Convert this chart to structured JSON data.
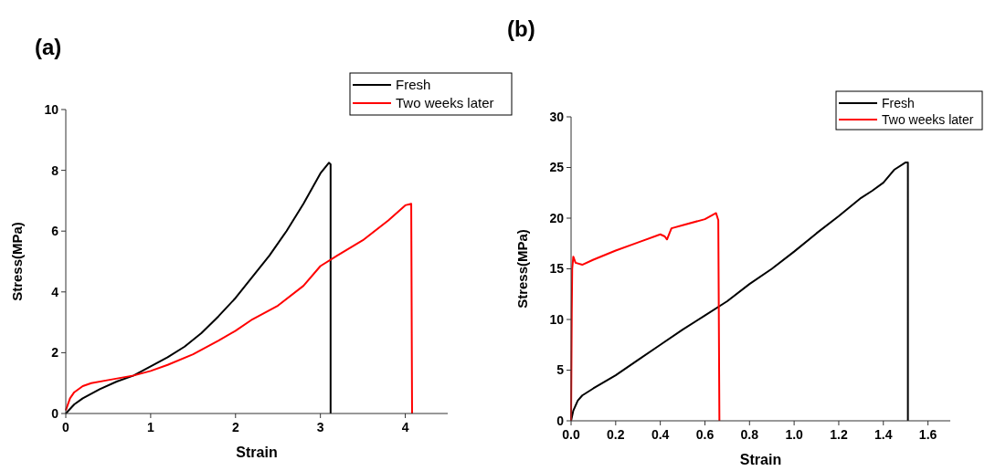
{
  "chart_data": [
    {
      "type": "line",
      "title": "(a)",
      "xlabel": "Strain",
      "ylabel": "Stress(MPa)",
      "xlim": [
        0,
        4.5
      ],
      "xticks": [
        0,
        1,
        2,
        3,
        4
      ],
      "ylim": [
        0,
        10
      ],
      "yticks": [
        0,
        2,
        4,
        6,
        8,
        10
      ],
      "legend": "top right",
      "series": [
        {
          "name": "Fresh",
          "color": "#000000",
          "x": [
            0,
            0.1,
            0.2,
            0.4,
            0.6,
            0.8,
            1.0,
            1.2,
            1.4,
            1.6,
            1.8,
            2.0,
            2.2,
            2.4,
            2.6,
            2.8,
            3.0,
            3.1,
            3.12,
            3.12
          ],
          "values": [
            0,
            0.3,
            0.5,
            0.8,
            1.05,
            1.25,
            1.55,
            1.85,
            2.2,
            2.65,
            3.2,
            3.8,
            4.5,
            5.2,
            6.0,
            6.9,
            7.9,
            8.25,
            8.2,
            0
          ]
        },
        {
          "name": "Two weeks later",
          "color": "#ff0000",
          "x": [
            0,
            0.05,
            0.1,
            0.2,
            0.3,
            0.5,
            0.8,
            1.0,
            1.2,
            1.5,
            1.8,
            2.0,
            2.2,
            2.5,
            2.8,
            3.0,
            3.2,
            3.5,
            3.8,
            4.0,
            4.07,
            4.08
          ],
          "values": [
            0.1,
            0.5,
            0.7,
            0.9,
            1.0,
            1.1,
            1.25,
            1.4,
            1.6,
            1.95,
            2.4,
            2.72,
            3.1,
            3.55,
            4.2,
            4.85,
            5.2,
            5.7,
            6.35,
            6.85,
            6.9,
            0
          ]
        }
      ]
    },
    {
      "type": "line",
      "title": "(b)",
      "xlabel": "Strain",
      "ylabel": "Stress(MPa)",
      "xlim": [
        0,
        1.7
      ],
      "xticks": [
        {
          "value": 0,
          "label": "0.0"
        },
        0.2,
        0.4,
        0.6,
        0.8,
        {
          "value": 1,
          "label": "1.0"
        },
        1.2,
        1.4,
        1.6
      ],
      "ylim": [
        0,
        30
      ],
      "yticks": [
        0,
        5,
        10,
        15,
        20,
        25,
        30
      ],
      "legend": "top right",
      "series": [
        {
          "name": "Fresh",
          "color": "#000000",
          "x": [
            0,
            0.01,
            0.03,
            0.05,
            0.1,
            0.2,
            0.3,
            0.4,
            0.5,
            0.6,
            0.7,
            0.8,
            0.9,
            1.0,
            1.1,
            1.2,
            1.3,
            1.35,
            1.4,
            1.45,
            1.5,
            1.51,
            1.51
          ],
          "values": [
            0,
            1,
            2,
            2.5,
            3.2,
            4.5,
            6,
            7.5,
            9,
            10.4,
            11.8,
            13.5,
            15,
            16.7,
            18.5,
            20.2,
            22,
            22.7,
            23.5,
            24.8,
            25.5,
            25.5,
            0
          ]
        },
        {
          "name": "Two weeks later",
          "color": "#ff0000",
          "x": [
            0,
            0.003,
            0.005,
            0.01,
            0.02,
            0.05,
            0.1,
            0.2,
            0.3,
            0.4,
            0.42,
            0.43,
            0.45,
            0.5,
            0.6,
            0.65,
            0.66,
            0.665
          ],
          "values": [
            0,
            10.5,
            15,
            16.2,
            15.6,
            15.4,
            15.9,
            16.8,
            17.6,
            18.4,
            18.2,
            17.9,
            19,
            19.3,
            19.9,
            20.5,
            19.8,
            0
          ]
        }
      ]
    }
  ]
}
